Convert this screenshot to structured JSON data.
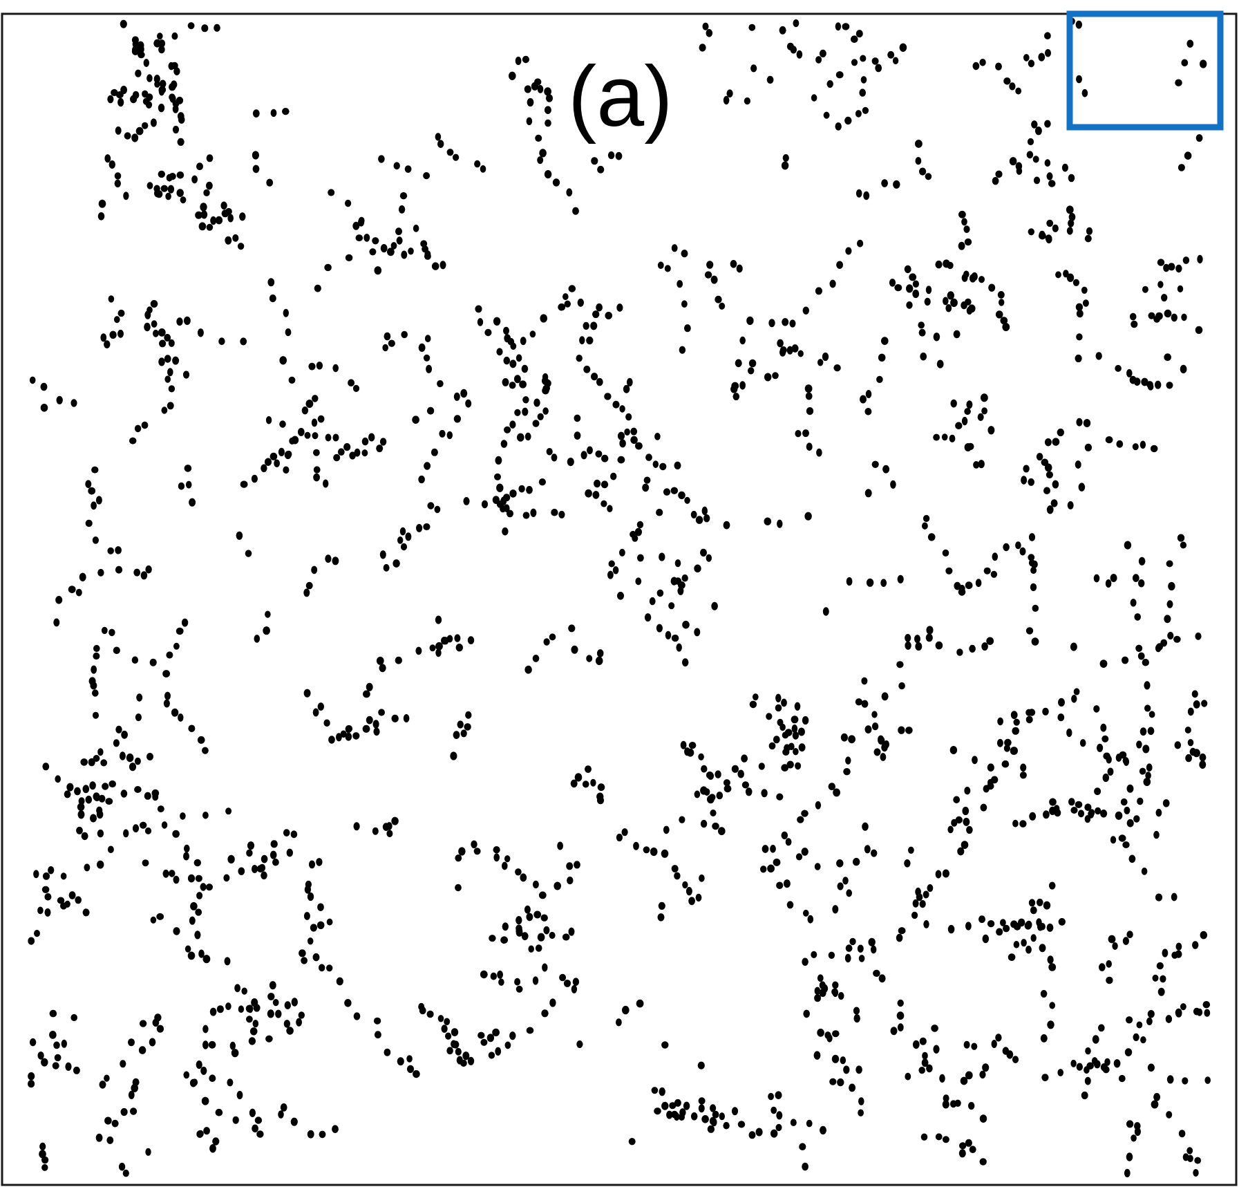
{
  "panel_label": "(a)",
  "colors": {
    "frame": "#1a1a1a",
    "particles": "#000000",
    "inset_box": "#1472c4",
    "background": "#ffffff"
  },
  "inset_box": {
    "present": true,
    "corner": "top-right"
  },
  "particle_pattern": {
    "description_type": "dense 2D scatter of small black particles forming chains and clusters",
    "approx_count": 1700,
    "seed": 7
  }
}
